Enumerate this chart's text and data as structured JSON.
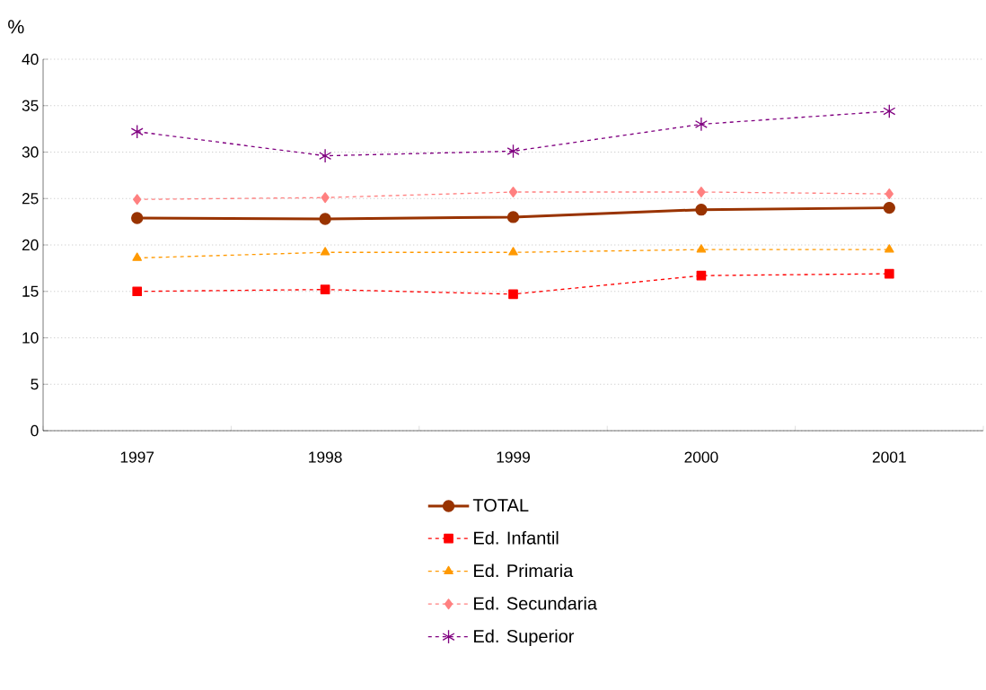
{
  "chart_data": {
    "type": "line",
    "ylabel": "%",
    "categories": [
      "1997",
      "1998",
      "1999",
      "2000",
      "2001"
    ],
    "ylim": [
      0,
      40
    ],
    "yticks": [
      0,
      5,
      10,
      15,
      20,
      25,
      30,
      35,
      40
    ],
    "grid": "y",
    "legend": "bottom",
    "series": [
      {
        "name": "TOTAL",
        "color": "#993300",
        "marker": "circle",
        "line_style": "solid",
        "values": [
          22.9,
          22.8,
          23.0,
          23.8,
          24.0
        ]
      },
      {
        "name": "Ed. Infantil",
        "color": "#ff0000",
        "marker": "square",
        "line_style": "dashed",
        "values": [
          15.0,
          15.2,
          14.7,
          16.7,
          16.9
        ]
      },
      {
        "name": "Ed. Primaria",
        "color": "#ff9900",
        "marker": "triangle",
        "line_style": "dashed",
        "values": [
          18.6,
          19.2,
          19.2,
          19.5,
          19.5
        ]
      },
      {
        "name": "Ed. Secundaria",
        "color": "#ff8080",
        "marker": "diamond",
        "line_style": "dashed",
        "values": [
          24.9,
          25.1,
          25.7,
          25.7,
          25.5
        ]
      },
      {
        "name": "Ed. Superior",
        "color": "#800080",
        "marker": "cross",
        "line_style": "dashed",
        "values": [
          32.2,
          29.6,
          30.1,
          33.0,
          34.4
        ]
      }
    ]
  }
}
